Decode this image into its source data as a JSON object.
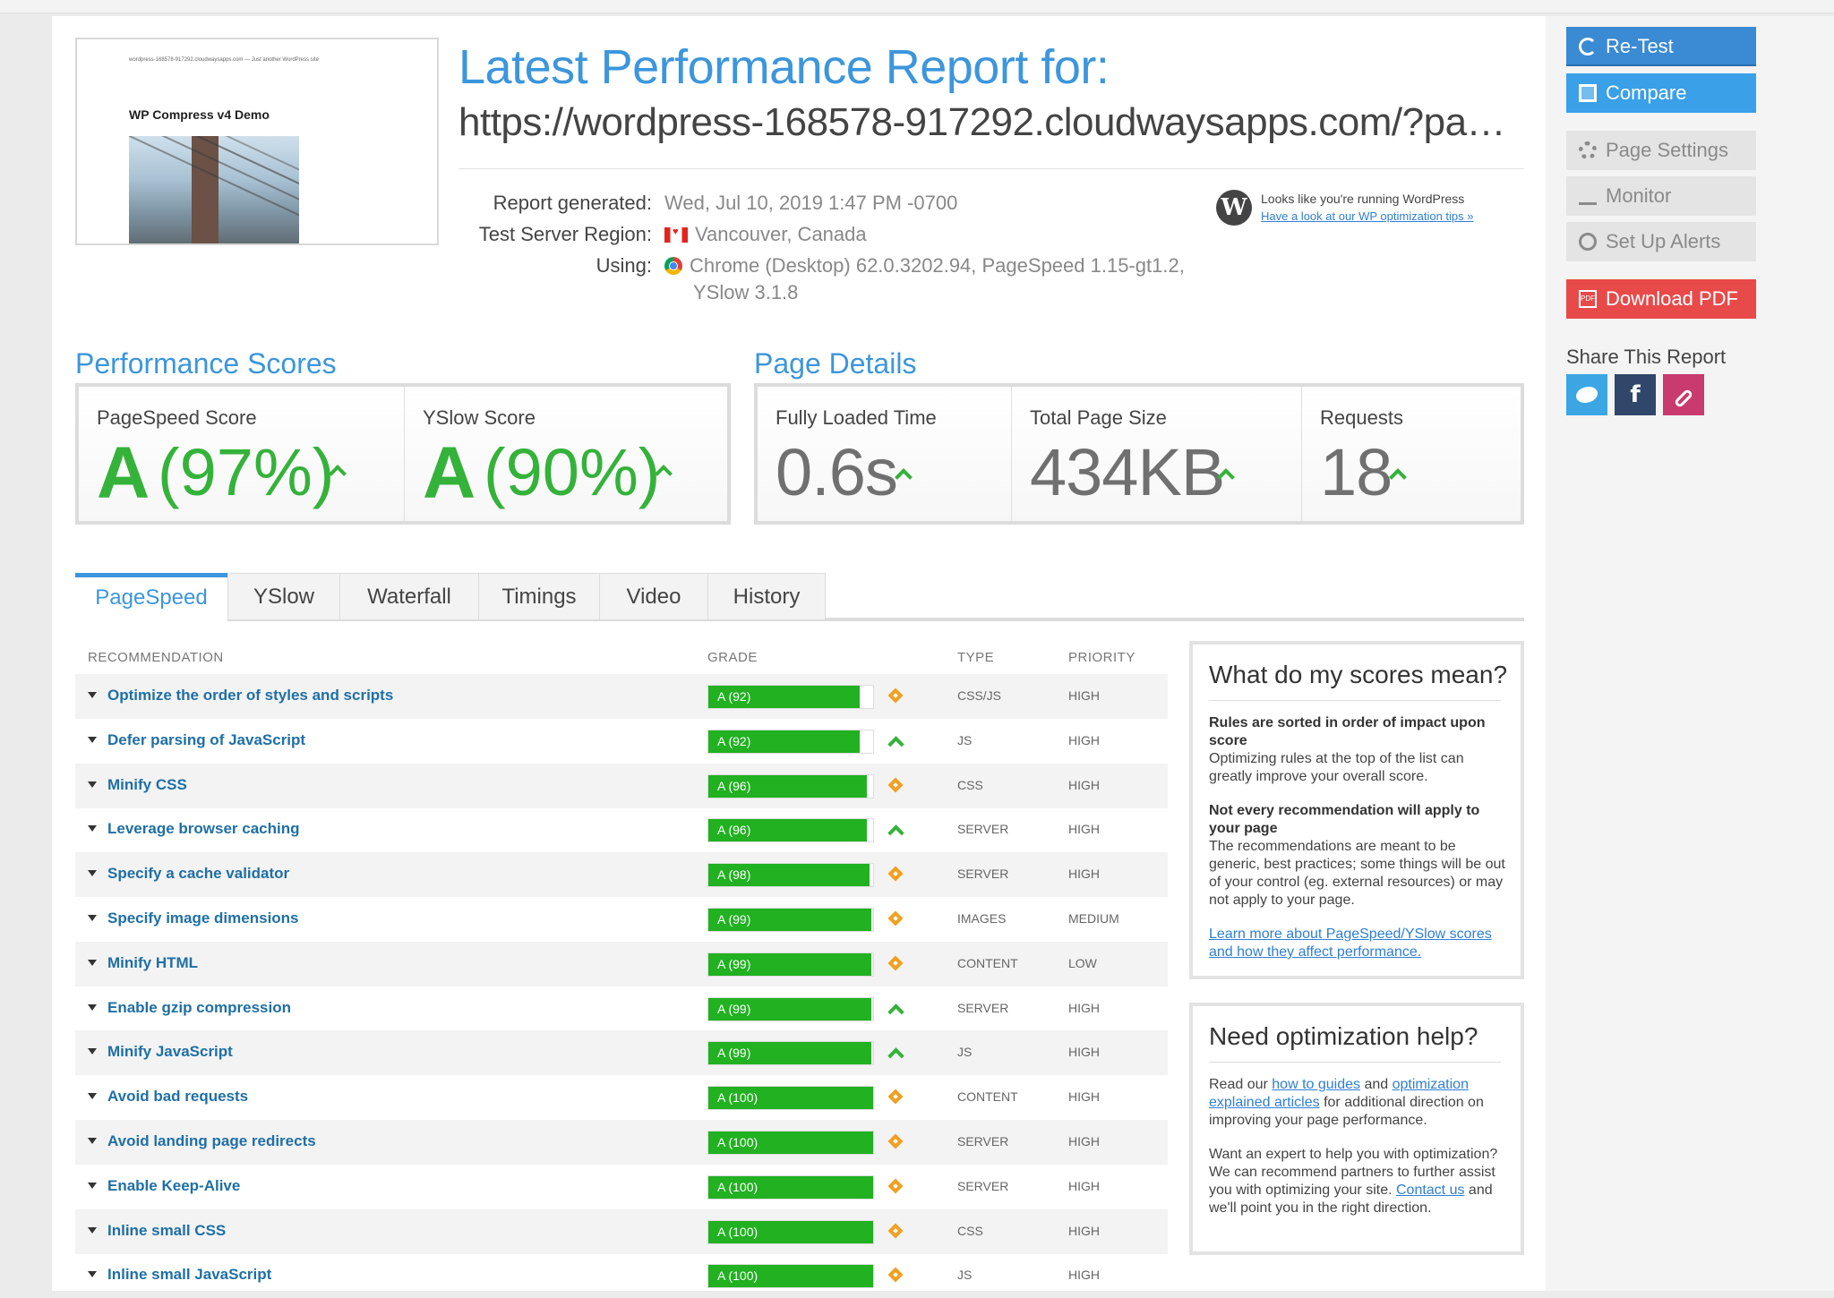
{
  "thumbnail": {
    "url_line": "wordpress-168578-917292.cloudwaysapps.com — Just another WordPress site",
    "site_title": "WP Compress v4 Demo"
  },
  "header": {
    "title": "Latest Performance Report for:",
    "url": "https://wordpress-168578-917292.cloudwaysapps.com/?page..."
  },
  "meta": {
    "generated_label": "Report generated:",
    "generated_value": "Wed, Jul 10, 2019 1:47 PM -0700",
    "region_label": "Test Server Region:",
    "region_value": "Vancouver, Canada",
    "using_label": "Using:",
    "using_value_line1": "Chrome (Desktop) 62.0.3202.94, PageSpeed 1.15-gt1.2,",
    "using_value_line2": "YSlow 3.1.8"
  },
  "wordpress_notice": {
    "text": "Looks like you're running WordPress",
    "link": "Have a look at our WP optimization tips »"
  },
  "performance_scores": {
    "title": "Performance Scores",
    "pagespeed": {
      "label": "PageSpeed Score",
      "grade": "A",
      "percent": "(97%)"
    },
    "yslow": {
      "label": "YSlow Score",
      "grade": "A",
      "percent": "(90%)"
    }
  },
  "page_details": {
    "title": "Page Details",
    "loaded": {
      "label": "Fully Loaded Time",
      "value": "0.6s"
    },
    "size": {
      "label": "Total Page Size",
      "value": "434KB"
    },
    "requests": {
      "label": "Requests",
      "value": "18"
    }
  },
  "tabs": [
    "PageSpeed",
    "YSlow",
    "Waterfall",
    "Timings",
    "Video",
    "History"
  ],
  "table": {
    "headers": {
      "recommendation": "RECOMMENDATION",
      "grade": "GRADE",
      "type": "TYPE",
      "priority": "PRIORITY"
    },
    "rows": [
      {
        "name": "Optimize the order of styles and scripts",
        "grade": "A (92)",
        "score": 92,
        "trend": "neutral",
        "type": "CSS/JS",
        "priority": "HIGH"
      },
      {
        "name": "Defer parsing of JavaScript",
        "grade": "A (92)",
        "score": 92,
        "trend": "up",
        "type": "JS",
        "priority": "HIGH"
      },
      {
        "name": "Minify CSS",
        "grade": "A (96)",
        "score": 96,
        "trend": "neutral",
        "type": "CSS",
        "priority": "HIGH"
      },
      {
        "name": "Leverage browser caching",
        "grade": "A (96)",
        "score": 96,
        "trend": "up",
        "type": "SERVER",
        "priority": "HIGH"
      },
      {
        "name": "Specify a cache validator",
        "grade": "A (98)",
        "score": 98,
        "trend": "neutral",
        "type": "SERVER",
        "priority": "HIGH"
      },
      {
        "name": "Specify image dimensions",
        "grade": "A (99)",
        "score": 99,
        "trend": "neutral",
        "type": "IMAGES",
        "priority": "MEDIUM"
      },
      {
        "name": "Minify HTML",
        "grade": "A (99)",
        "score": 99,
        "trend": "neutral",
        "type": "CONTENT",
        "priority": "LOW"
      },
      {
        "name": "Enable gzip compression",
        "grade": "A (99)",
        "score": 99,
        "trend": "up",
        "type": "SERVER",
        "priority": "HIGH"
      },
      {
        "name": "Minify JavaScript",
        "grade": "A (99)",
        "score": 99,
        "trend": "up",
        "type": "JS",
        "priority": "HIGH"
      },
      {
        "name": "Avoid bad requests",
        "grade": "A (100)",
        "score": 100,
        "trend": "neutral",
        "type": "CONTENT",
        "priority": "HIGH"
      },
      {
        "name": "Avoid landing page redirects",
        "grade": "A (100)",
        "score": 100,
        "trend": "neutral",
        "type": "SERVER",
        "priority": "HIGH"
      },
      {
        "name": "Enable Keep-Alive",
        "grade": "A (100)",
        "score": 100,
        "trend": "neutral",
        "type": "SERVER",
        "priority": "HIGH"
      },
      {
        "name": "Inline small CSS",
        "grade": "A (100)",
        "score": 100,
        "trend": "neutral",
        "type": "CSS",
        "priority": "HIGH"
      },
      {
        "name": "Inline small JavaScript",
        "grade": "A (100)",
        "score": 100,
        "trend": "neutral",
        "type": "JS",
        "priority": "HIGH"
      }
    ]
  },
  "scores_box": {
    "title": "What do my scores mean?",
    "p1_bold": "Rules are sorted in order of impact upon score",
    "p1_text": "Optimizing rules at the top of the list can greatly improve your overall score.",
    "p2_bold": "Not every recommendation will apply to your page",
    "p2_text": "The recommendations are meant to be generic, best practices; some things will be out of your control (eg. external resources) or may not apply to your page.",
    "link": "Learn more about PageSpeed/YSlow scores and how they affect performance."
  },
  "help_box": {
    "title": "Need optimization help?",
    "p1_a": "Read our ",
    "p1_link1": "how to guides",
    "p1_b": " and ",
    "p1_link2": "optimization explained articles",
    "p1_c": " for additional direction on improving your page performance.",
    "p2_a": "Want an expert to help you with optimization? We can recommend partners to further assist you with optimizing your site. ",
    "p2_link": "Contact us",
    "p2_b": " and we'll point you in the right direction."
  },
  "sidebar": {
    "retest": "Re-Test",
    "compare": "Compare",
    "page_settings": "Page Settings",
    "monitor": "Monitor",
    "alerts": "Set Up Alerts",
    "download": "Download PDF",
    "pdf_tag": "PDF",
    "share_title": "Share This Report",
    "facebook_glyph": "f"
  },
  "colors": {
    "accent": "#3c96dc",
    "grade_green": "#21b121",
    "warning_orange": "#f0a020",
    "pdf_red": "#e84a4a"
  }
}
